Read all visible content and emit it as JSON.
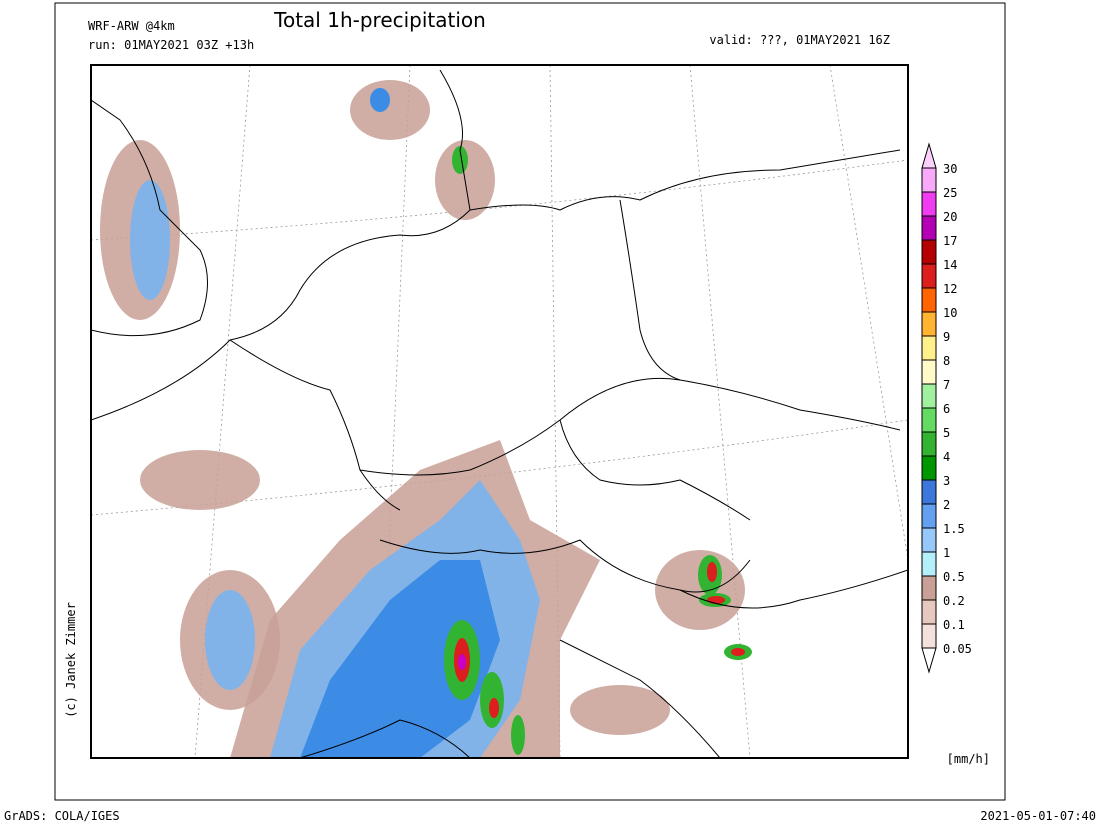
{
  "header": {
    "model": "WRF-ARW @4km",
    "run": "run: 01MAY2021 03Z +13h",
    "title": "Total 1h-precipitation",
    "valid": "valid: ???, 01MAY2021 16Z"
  },
  "credit": "(c) Janek Zimmer",
  "legend": {
    "unit": "[mm/h]",
    "levels": [
      30,
      25,
      20,
      17,
      14,
      12,
      10,
      9,
      8,
      7,
      6,
      5,
      4,
      3,
      2,
      1.5,
      1,
      0.5,
      0.2,
      0.1,
      0.05
    ],
    "colors": [
      "#fcd2fc",
      "#f8aaf8",
      "#f03cf0",
      "#b400b4",
      "#b40000",
      "#dc1e1e",
      "#ff6400",
      "#ffb432",
      "#fff08c",
      "#fffac8",
      "#a0f0a0",
      "#64dc64",
      "#32b432",
      "#009600",
      "#3c78dc",
      "#64a0f0",
      "#96c8fa",
      "#b4f0fa",
      "#c8a096",
      "#e6c8be",
      "#f5e1dc",
      "#ffffff"
    ]
  },
  "footer": {
    "left": "GrADS: COLA/IGES",
    "right": "2021-05-01-07:40"
  }
}
